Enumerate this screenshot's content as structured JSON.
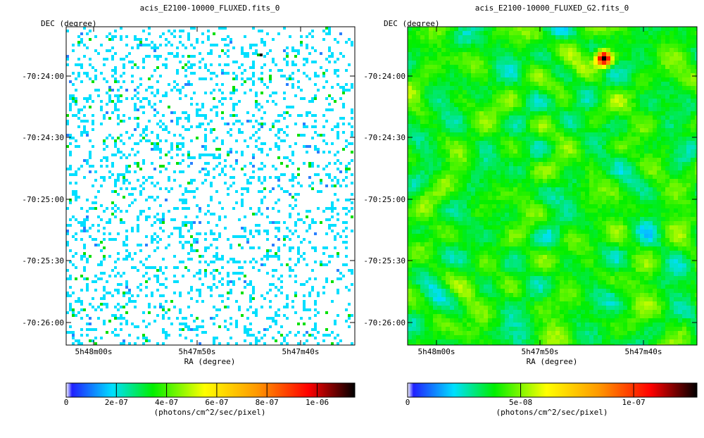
{
  "chart_data": [
    {
      "type": "heatmap",
      "title": "acis_E2100-10000_FLUXED.fits_0",
      "xlabel": "RA (degree)",
      "ylabel": "DEC (degree)",
      "x_ticks": [
        "5h48m00s",
        "5h47m50s",
        "5h47m40s"
      ],
      "y_ticks": [
        "-70:24:00",
        "-70:24:30",
        "-70:25:00",
        "-70:25:30",
        "-70:26:00"
      ],
      "colorbar": {
        "label": "(photons/cm^2/sec/pixel)",
        "min": 0,
        "max": 1.15e-06,
        "ticks": [
          {
            "value": 0,
            "label": "0"
          },
          {
            "value": 2e-07,
            "label": "2e-07"
          },
          {
            "value": 4e-07,
            "label": "4e-07"
          },
          {
            "value": 6e-07,
            "label": "6e-07"
          },
          {
            "value": 8e-07,
            "label": "8e-07"
          },
          {
            "value": 1e-06,
            "label": "1e-06"
          }
        ]
      },
      "image_style": "sparse",
      "colormap": [
        "#ffffff",
        "#2020ff",
        "#00dfff",
        "#00ef00",
        "#ffff00",
        "#ff9900",
        "#ff0000",
        "#000000"
      ]
    },
    {
      "type": "heatmap",
      "title": "acis_E2100-10000_FLUXED_G2.fits_0",
      "xlabel": "RA (degree)",
      "ylabel": "DEC (degree)",
      "x_ticks": [
        "5h48m00s",
        "5h47m50s",
        "5h47m40s"
      ],
      "y_ticks": [
        "-70:24:00",
        "-70:24:30",
        "-70:25:00",
        "-70:25:30",
        "-70:26:00"
      ],
      "colorbar": {
        "label": "(photons/cm^2/sec/pixel)",
        "min": 0,
        "max": 1.28e-07,
        "ticks": [
          {
            "value": 0,
            "label": "0"
          },
          {
            "value": 5e-08,
            "label": "5e-08"
          },
          {
            "value": 1e-07,
            "label": "1e-07"
          }
        ]
      },
      "image_style": "smoothed",
      "colormap": [
        "#ffffff",
        "#2020ff",
        "#00dfff",
        "#00ef00",
        "#ffff00",
        "#ff9900",
        "#ff0000",
        "#000000"
      ]
    }
  ]
}
